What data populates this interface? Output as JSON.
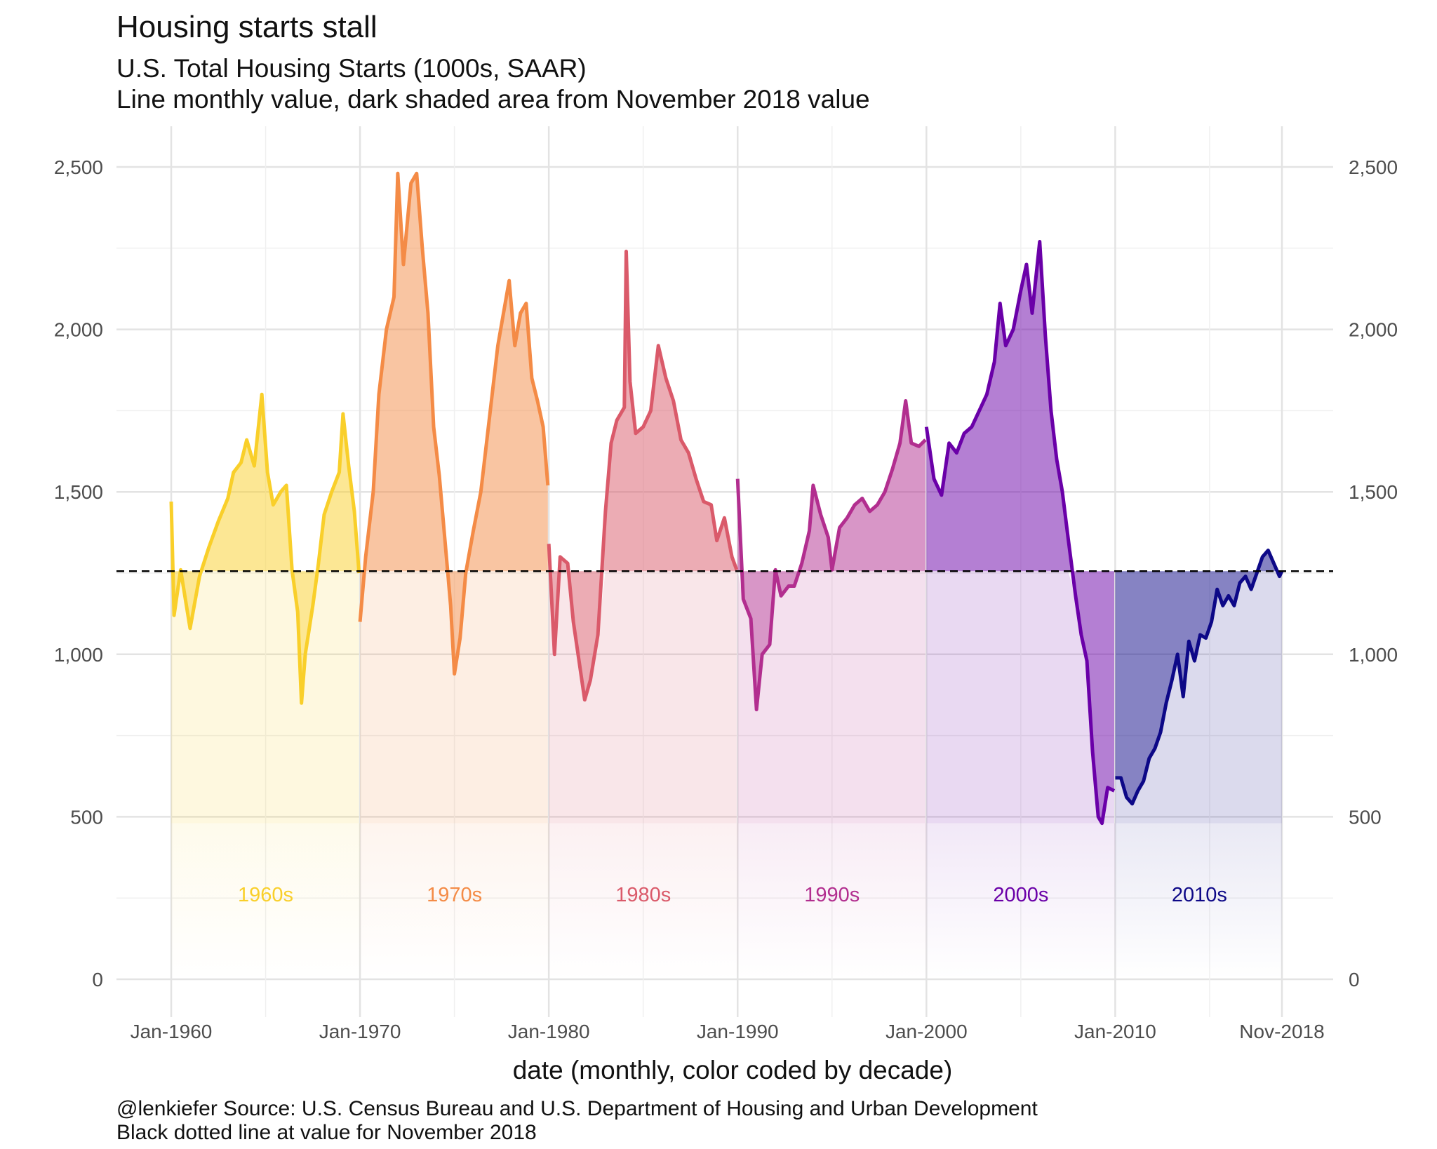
{
  "chart_data": {
    "type": "area",
    "title": "Housing starts stall",
    "subtitle": "U.S. Total Housing Starts (1000s, SAAR)\nLine monthly value, dark shaded area from November 2018 value",
    "xlabel": "date (monthly, color coded by decade)",
    "ylabel": "",
    "caption": "@lenkiefer Source: U.S. Census Bureau and U.S. Department of Housing and Urban Development\nBlack dotted line at value for November 2018",
    "reference_line": {
      "value": 1256,
      "label": "November 2018 value",
      "style": "dashed"
    },
    "ylim": [
      0,
      2500
    ],
    "xlim": [
      1960.0,
      2018.83
    ],
    "y_ticks": [
      0,
      500,
      1000,
      1500,
      2000,
      2500
    ],
    "y_tick_labels": [
      "0",
      "500",
      "1,000",
      "1,500",
      "2,000",
      "2,500"
    ],
    "x_ticks": [
      1960.0,
      1970.0,
      1980.0,
      1990.0,
      2000.0,
      2010.0,
      2018.83
    ],
    "x_tick_labels": [
      "Jan-1960",
      "Jan-1970",
      "Jan-1980",
      "Jan-1990",
      "Jan-2000",
      "Jan-2010",
      "Nov-2018"
    ],
    "series": [
      {
        "name": "1960s",
        "color": "#F9CF2A",
        "t0": 1960.0,
        "t1": 1970.0,
        "points": [
          [
            1960.0,
            1470
          ],
          [
            1960.15,
            1120
          ],
          [
            1960.5,
            1260
          ],
          [
            1961.0,
            1080
          ],
          [
            1961.5,
            1240
          ],
          [
            1962.0,
            1330
          ],
          [
            1962.5,
            1410
          ],
          [
            1963.0,
            1480
          ],
          [
            1963.3,
            1560
          ],
          [
            1963.7,
            1590
          ],
          [
            1964.0,
            1660
          ],
          [
            1964.4,
            1580
          ],
          [
            1964.8,
            1800
          ],
          [
            1965.1,
            1560
          ],
          [
            1965.4,
            1460
          ],
          [
            1965.8,
            1500
          ],
          [
            1966.1,
            1520
          ],
          [
            1966.4,
            1260
          ],
          [
            1966.7,
            1130
          ],
          [
            1966.9,
            850
          ],
          [
            1967.1,
            1000
          ],
          [
            1967.5,
            1150
          ],
          [
            1967.8,
            1280
          ],
          [
            1968.1,
            1430
          ],
          [
            1968.5,
            1500
          ],
          [
            1968.9,
            1560
          ],
          [
            1969.1,
            1740
          ],
          [
            1969.4,
            1580
          ],
          [
            1969.7,
            1440
          ],
          [
            1969.95,
            1250
          ]
        ]
      },
      {
        "name": "1970s",
        "color": "#F48B46",
        "t0": 1970.0,
        "t1": 1980.0,
        "points": [
          [
            1970.0,
            1100
          ],
          [
            1970.3,
            1300
          ],
          [
            1970.7,
            1500
          ],
          [
            1971.0,
            1800
          ],
          [
            1971.4,
            2000
          ],
          [
            1971.8,
            2100
          ],
          [
            1972.0,
            2480
          ],
          [
            1972.3,
            2200
          ],
          [
            1972.7,
            2450
          ],
          [
            1973.0,
            2480
          ],
          [
            1973.3,
            2250
          ],
          [
            1973.6,
            2050
          ],
          [
            1973.9,
            1700
          ],
          [
            1974.2,
            1550
          ],
          [
            1974.5,
            1350
          ],
          [
            1974.8,
            1150
          ],
          [
            1975.0,
            940
          ],
          [
            1975.3,
            1050
          ],
          [
            1975.6,
            1250
          ],
          [
            1976.0,
            1380
          ],
          [
            1976.4,
            1500
          ],
          [
            1976.8,
            1700
          ],
          [
            1977.0,
            1800
          ],
          [
            1977.3,
            1950
          ],
          [
            1977.6,
            2050
          ],
          [
            1977.9,
            2150
          ],
          [
            1978.2,
            1950
          ],
          [
            1978.5,
            2050
          ],
          [
            1978.8,
            2080
          ],
          [
            1979.1,
            1850
          ],
          [
            1979.4,
            1780
          ],
          [
            1979.7,
            1700
          ],
          [
            1979.95,
            1520
          ]
        ]
      },
      {
        "name": "1980s",
        "color": "#DA5A6A",
        "t0": 1980.0,
        "t1": 1990.0,
        "points": [
          [
            1980.0,
            1340
          ],
          [
            1980.3,
            1000
          ],
          [
            1980.6,
            1300
          ],
          [
            1981.0,
            1280
          ],
          [
            1981.3,
            1100
          ],
          [
            1981.6,
            980
          ],
          [
            1981.9,
            860
          ],
          [
            1982.2,
            920
          ],
          [
            1982.6,
            1060
          ],
          [
            1983.0,
            1440
          ],
          [
            1983.3,
            1650
          ],
          [
            1983.6,
            1720
          ],
          [
            1984.0,
            1760
          ],
          [
            1984.1,
            2240
          ],
          [
            1984.3,
            1840
          ],
          [
            1984.6,
            1680
          ],
          [
            1985.0,
            1700
          ],
          [
            1985.4,
            1750
          ],
          [
            1985.8,
            1950
          ],
          [
            1986.2,
            1850
          ],
          [
            1986.6,
            1780
          ],
          [
            1987.0,
            1660
          ],
          [
            1987.4,
            1620
          ],
          [
            1987.8,
            1540
          ],
          [
            1988.2,
            1470
          ],
          [
            1988.6,
            1460
          ],
          [
            1988.9,
            1350
          ],
          [
            1989.3,
            1420
          ],
          [
            1989.7,
            1300
          ],
          [
            1989.95,
            1260
          ]
        ]
      },
      {
        "name": "1990s",
        "color": "#B22E8F",
        "t0": 1990.0,
        "t1": 2000.0,
        "points": [
          [
            1990.0,
            1540
          ],
          [
            1990.3,
            1170
          ],
          [
            1990.7,
            1110
          ],
          [
            1991.0,
            830
          ],
          [
            1991.3,
            1000
          ],
          [
            1991.7,
            1030
          ],
          [
            1992.0,
            1260
          ],
          [
            1992.3,
            1180
          ],
          [
            1992.7,
            1210
          ],
          [
            1993.0,
            1210
          ],
          [
            1993.4,
            1280
          ],
          [
            1993.8,
            1380
          ],
          [
            1994.0,
            1520
          ],
          [
            1994.4,
            1430
          ],
          [
            1994.8,
            1360
          ],
          [
            1995.0,
            1260
          ],
          [
            1995.4,
            1390
          ],
          [
            1995.8,
            1420
          ],
          [
            1996.2,
            1460
          ],
          [
            1996.6,
            1480
          ],
          [
            1997.0,
            1440
          ],
          [
            1997.4,
            1460
          ],
          [
            1997.8,
            1500
          ],
          [
            1998.2,
            1570
          ],
          [
            1998.6,
            1650
          ],
          [
            1998.9,
            1780
          ],
          [
            1999.2,
            1650
          ],
          [
            1999.6,
            1640
          ],
          [
            1999.95,
            1660
          ]
        ]
      },
      {
        "name": "2000s",
        "color": "#6A00A8",
        "t0": 2000.0,
        "t1": 2010.0,
        "points": [
          [
            2000.0,
            1700
          ],
          [
            2000.4,
            1540
          ],
          [
            2000.8,
            1490
          ],
          [
            2001.2,
            1650
          ],
          [
            2001.6,
            1620
          ],
          [
            2002.0,
            1680
          ],
          [
            2002.4,
            1700
          ],
          [
            2002.8,
            1750
          ],
          [
            2003.2,
            1800
          ],
          [
            2003.6,
            1900
          ],
          [
            2003.9,
            2080
          ],
          [
            2004.2,
            1950
          ],
          [
            2004.6,
            2000
          ],
          [
            2005.0,
            2120
          ],
          [
            2005.3,
            2200
          ],
          [
            2005.6,
            2050
          ],
          [
            2006.0,
            2270
          ],
          [
            2006.3,
            1980
          ],
          [
            2006.6,
            1750
          ],
          [
            2006.9,
            1600
          ],
          [
            2007.2,
            1500
          ],
          [
            2007.5,
            1360
          ],
          [
            2007.9,
            1180
          ],
          [
            2008.2,
            1060
          ],
          [
            2008.5,
            980
          ],
          [
            2008.8,
            700
          ],
          [
            2009.1,
            500
          ],
          [
            2009.3,
            480
          ],
          [
            2009.6,
            590
          ],
          [
            2009.95,
            580
          ]
        ]
      },
      {
        "name": "2010s",
        "color": "#0D0887",
        "t0": 2010.0,
        "t1": 2018.83,
        "points": [
          [
            2010.0,
            620
          ],
          [
            2010.3,
            620
          ],
          [
            2010.6,
            560
          ],
          [
            2010.9,
            540
          ],
          [
            2011.2,
            580
          ],
          [
            2011.5,
            610
          ],
          [
            2011.8,
            680
          ],
          [
            2012.1,
            710
          ],
          [
            2012.4,
            760
          ],
          [
            2012.7,
            850
          ],
          [
            2013.0,
            920
          ],
          [
            2013.3,
            1000
          ],
          [
            2013.6,
            870
          ],
          [
            2013.9,
            1040
          ],
          [
            2014.2,
            980
          ],
          [
            2014.5,
            1060
          ],
          [
            2014.8,
            1050
          ],
          [
            2015.1,
            1100
          ],
          [
            2015.4,
            1200
          ],
          [
            2015.7,
            1150
          ],
          [
            2016.0,
            1180
          ],
          [
            2016.3,
            1150
          ],
          [
            2016.6,
            1220
          ],
          [
            2016.9,
            1240
          ],
          [
            2017.2,
            1200
          ],
          [
            2017.5,
            1250
          ],
          [
            2017.8,
            1300
          ],
          [
            2018.1,
            1320
          ],
          [
            2018.4,
            1280
          ],
          [
            2018.7,
            1240
          ],
          [
            2018.83,
            1256
          ]
        ]
      }
    ],
    "decade_labels": [
      "1960s",
      "1970s",
      "1980s",
      "1990s",
      "2000s",
      "2010s"
    ]
  }
}
